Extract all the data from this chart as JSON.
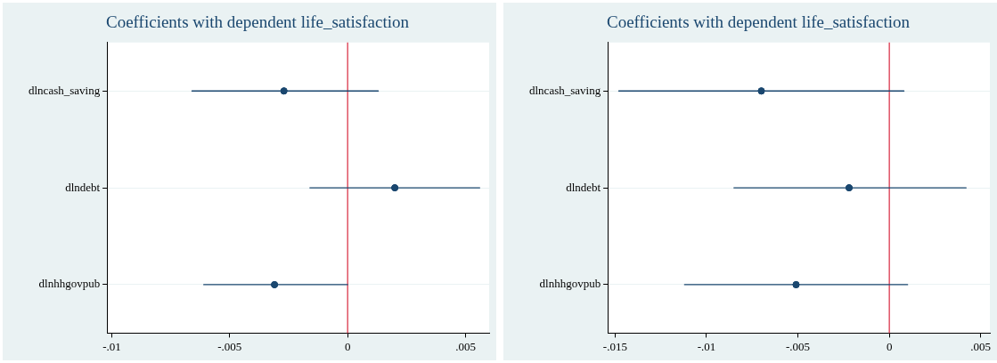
{
  "chart_data": [
    {
      "type": "scatter",
      "orientation": "horizontal",
      "title": "Coefficients with dependent life_satisfaction",
      "categories": [
        "dlncash_saving",
        "dlndebt",
        "dlnhhgovpub"
      ],
      "color": "#1a476f",
      "values": [
        -0.0027,
        0.002,
        -0.0031
      ],
      "errors": [
        [
          -0.0066,
          0.0013
        ],
        [
          -0.0016,
          0.0056
        ],
        [
          -0.0061,
          0.0
        ]
      ],
      "xlim": [
        -0.0102,
        0.006
      ],
      "xticks": [
        {
          "value": -0.01,
          "label": "-.01"
        },
        {
          "value": -0.005,
          "label": "-.005"
        },
        0,
        {
          "value": 0.005,
          "label": ".005"
        }
      ],
      "ref_lines": [
        {
          "axis": "x",
          "value": 0,
          "color": "#d7263d"
        }
      ],
      "grid": "y",
      "marker": "circle",
      "legend": false
    },
    {
      "type": "scatter",
      "orientation": "horizontal",
      "title": "Coefficients with dependent life_satisfaction",
      "categories": [
        "dlncash_saving",
        "dlndebt",
        "dlnhhgovpub"
      ],
      "color": "#1a476f",
      "values": [
        -0.007,
        -0.0022,
        -0.0051
      ],
      "errors": [
        [
          -0.0148,
          0.0008
        ],
        [
          -0.0085,
          0.0042
        ],
        [
          -0.0112,
          0.001
        ]
      ],
      "xlim": [
        -0.0154,
        0.0055
      ],
      "xticks": [
        {
          "value": -0.015,
          "label": "-.015"
        },
        {
          "value": -0.01,
          "label": "-.01"
        },
        {
          "value": -0.005,
          "label": "-.005"
        },
        0,
        {
          "value": 0.005,
          "label": ".005"
        }
      ],
      "ref_lines": [
        {
          "axis": "x",
          "value": 0,
          "color": "#d7263d"
        }
      ],
      "grid": "y",
      "marker": "circle",
      "legend": false
    }
  ]
}
